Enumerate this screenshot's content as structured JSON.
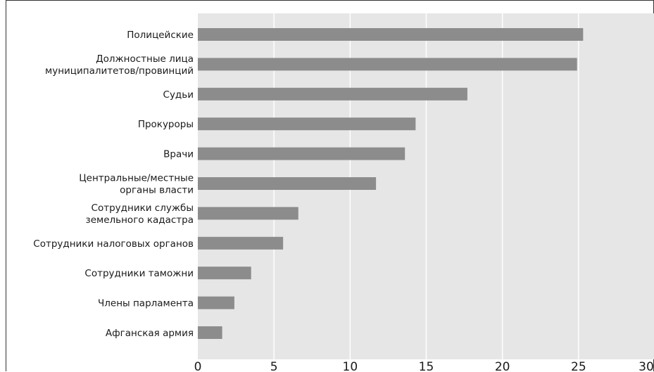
{
  "chart_data": {
    "type": "bar",
    "orientation": "horizontal",
    "categories": [
      [
        "Полицейские"
      ],
      [
        "Должностные лица",
        "муниципалитетов/провинций"
      ],
      [
        "Судьи"
      ],
      [
        "Прокуроры"
      ],
      [
        "Врачи"
      ],
      [
        "Центральные/местные",
        "органы власти"
      ],
      [
        "Сотрудники службы",
        "земельного кадастра"
      ],
      [
        "Сотрудники налоговых органов"
      ],
      [
        "Сотрудники таможни"
      ],
      [
        "Члены парламента"
      ],
      [
        "Афганская армия"
      ]
    ],
    "values": [
      25.3,
      24.9,
      17.7,
      14.3,
      13.6,
      11.7,
      6.6,
      5.6,
      3.5,
      2.4,
      1.6
    ],
    "xlim": [
      0,
      30
    ],
    "xticks": [
      "0",
      "5",
      "10",
      "15",
      "20",
      "25",
      "30"
    ],
    "grid": true,
    "colors": {
      "bar": "#8c8c8c",
      "plot_background": "#e6e6e7",
      "grid": "#ffffff"
    }
  }
}
